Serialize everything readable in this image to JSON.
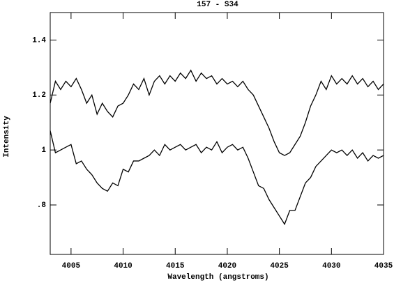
{
  "chart_data": {
    "type": "line",
    "title": "157 - S34",
    "x_label": "Wavelength (angstroms)",
    "y_label": "Intensity",
    "x": [
      4003,
      4003.5,
      4004,
      4004.5,
      4005,
      4005.5,
      4006,
      4006.5,
      4007,
      4007.5,
      4008,
      4008.5,
      4009,
      4009.5,
      4010,
      4010.5,
      4011,
      4011.5,
      4012,
      4012.5,
      4013,
      4013.5,
      4014,
      4014.5,
      4015,
      4015.5,
      4016,
      4016.5,
      4017,
      4017.5,
      4018,
      4018.5,
      4019,
      4019.5,
      4020,
      4020.5,
      4021,
      4021.5,
      4022,
      4022.5,
      4023,
      4023.5,
      4024,
      4024.5,
      4025,
      4025.5,
      4026,
      4026.5,
      4027,
      4027.5,
      4028,
      4028.5,
      4029,
      4029.5,
      4030,
      4030.5,
      4031,
      4031.5,
      4032,
      4032.5,
      4033,
      4033.5,
      4034,
      4034.5,
      4035
    ],
    "series": [
      {
        "color": "#000000",
        "values": [
          1.17,
          1.25,
          1.22,
          1.25,
          1.23,
          1.26,
          1.22,
          1.17,
          1.2,
          1.13,
          1.17,
          1.14,
          1.12,
          1.16,
          1.17,
          1.2,
          1.24,
          1.22,
          1.26,
          1.2,
          1.25,
          1.27,
          1.24,
          1.27,
          1.25,
          1.28,
          1.26,
          1.29,
          1.25,
          1.28,
          1.26,
          1.27,
          1.24,
          1.26,
          1.24,
          1.25,
          1.23,
          1.25,
          1.22,
          1.2,
          1.16,
          1.12,
          1.08,
          1.03,
          0.99,
          0.98,
          0.99,
          1.02,
          1.05,
          1.1,
          1.16,
          1.2,
          1.25,
          1.22,
          1.27,
          1.24,
          1.26,
          1.24,
          1.27,
          1.24,
          1.26,
          1.23,
          1.25,
          1.22,
          1.24
        ]
      },
      {
        "color": "#000000",
        "values": [
          1.07,
          0.99,
          1.0,
          1.01,
          1.02,
          0.95,
          0.96,
          0.93,
          0.91,
          0.88,
          0.86,
          0.85,
          0.88,
          0.87,
          0.93,
          0.92,
          0.96,
          0.96,
          0.97,
          0.98,
          1.0,
          0.98,
          1.02,
          1.0,
          1.01,
          1.02,
          1.0,
          1.01,
          1.02,
          0.99,
          1.01,
          1.0,
          1.03,
          0.99,
          1.01,
          1.02,
          1.0,
          1.01,
          0.97,
          0.92,
          0.87,
          0.86,
          0.82,
          0.79,
          0.76,
          0.73,
          0.78,
          0.78,
          0.83,
          0.88,
          0.9,
          0.94,
          0.96,
          0.98,
          1.0,
          0.99,
          1.0,
          0.98,
          1.0,
          0.97,
          0.99,
          0.96,
          0.98,
          0.97,
          0.98
        ]
      }
    ],
    "xlim": [
      4003,
      4035
    ],
    "ylim": [
      0.62,
      1.5
    ],
    "xticks": [
      4005,
      4010,
      4015,
      4020,
      4025,
      4030,
      4035
    ],
    "yticks": [
      {
        "value": 0.8,
        "label": ".8"
      },
      1,
      1.2,
      1.4
    ]
  }
}
